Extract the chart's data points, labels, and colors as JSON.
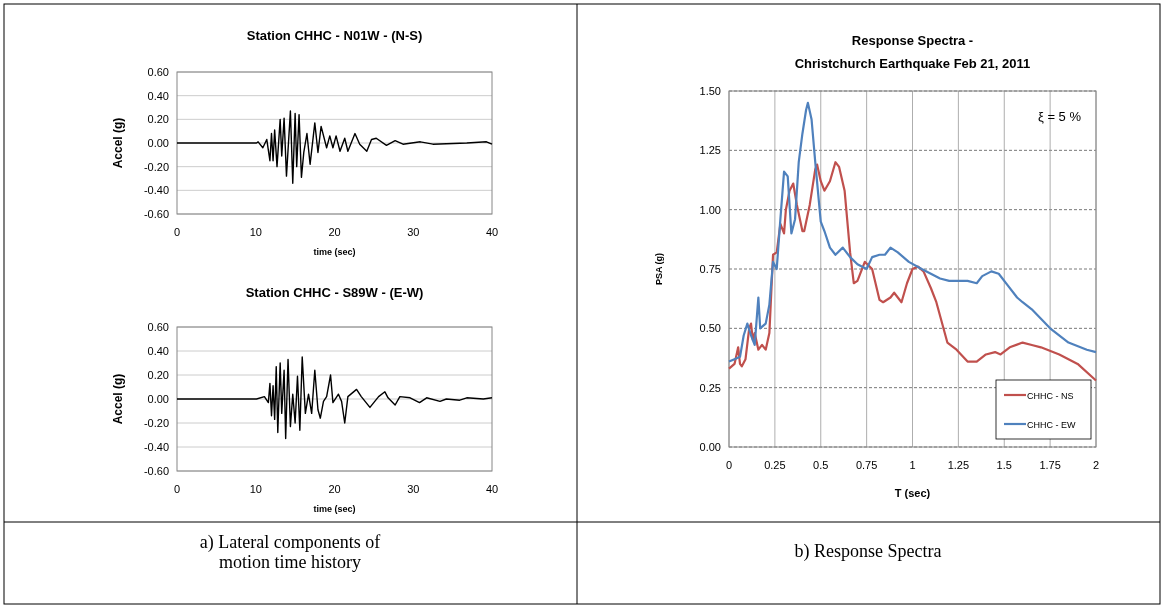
{
  "chart_data": [
    {
      "type": "line",
      "title": "Station CHHC - N01W - (N-S)",
      "xlabel": "time (sec)",
      "ylabel": "Accel (g)",
      "xlim": [
        0,
        40
      ],
      "xticks": [
        0,
        10,
        20,
        30,
        40
      ],
      "ylim": [
        -0.6,
        0.6
      ],
      "yticks": [
        {
          "value": -0.6,
          "label": "-0.60"
        },
        {
          "value": -0.4,
          "label": "-0.40"
        },
        {
          "value": -0.2,
          "label": "-0.20"
        },
        {
          "value": 0,
          "label": "0.00"
        },
        {
          "value": 0.2,
          "label": "0.20"
        },
        {
          "value": 0.4,
          "label": "0.40"
        },
        {
          "value": 0.6,
          "label": "0.60"
        }
      ],
      "grid": "y",
      "series": [
        {
          "color": "#000000",
          "x": [
            0,
            10.1,
            10.3,
            10.9,
            11.4,
            11.6,
            11.8,
            12.0,
            12.2,
            12.4,
            12.7,
            13.1,
            13.3,
            13.6,
            13.9,
            14.4,
            14.7,
            15.0,
            15.2,
            15.5,
            15.8,
            16.1,
            16.5,
            16.9,
            17.5,
            17.9,
            18.3,
            19.0,
            19.4,
            19.8,
            20.2,
            20.7,
            21.3,
            21.7,
            22.6,
            23.2,
            24.1,
            24.7,
            25.3,
            26.6,
            27.7,
            28.7,
            30.9,
            32.5,
            36.8,
            39.3,
            40
          ],
          "values": [
            0,
            0,
            0.01,
            -0.04,
            0.03,
            -0.06,
            -0.15,
            0.08,
            -0.15,
            0.11,
            -0.2,
            0.2,
            -0.11,
            0.21,
            -0.28,
            0.27,
            -0.34,
            0.25,
            -0.2,
            0.24,
            -0.29,
            -0.08,
            0.08,
            -0.18,
            0.17,
            -0.08,
            0.14,
            -0.04,
            0.06,
            -0.04,
            0.06,
            -0.07,
            0.04,
            -0.07,
            0.08,
            -0.01,
            -0.07,
            0.03,
            0.04,
            -0.02,
            0.02,
            -0.01,
            0.01,
            -0.01,
            0,
            0.01,
            -0.01
          ]
        }
      ]
    },
    {
      "type": "line",
      "title": "Station CHHC - S89W - (E-W)",
      "xlabel": "time (sec)",
      "ylabel": "Accel (g)",
      "xlim": [
        0,
        40
      ],
      "xticks": [
        0,
        10,
        20,
        30,
        40
      ],
      "ylim": [
        -0.6,
        0.6
      ],
      "yticks": [
        {
          "value": -0.6,
          "label": "-0.60"
        },
        {
          "value": -0.4,
          "label": "-0.40"
        },
        {
          "value": -0.2,
          "label": "-0.20"
        },
        {
          "value": 0,
          "label": "0.00"
        },
        {
          "value": 0.2,
          "label": "0.20"
        },
        {
          "value": 0.4,
          "label": "0.40"
        },
        {
          "value": 0.6,
          "label": "0.60"
        }
      ],
      "grid": "y",
      "annotations": [
        "a) Lateral components of motion time history"
      ],
      "series": [
        {
          "color": "#000000",
          "x": [
            0,
            10.1,
            11.1,
            11.6,
            11.8,
            12.0,
            12.2,
            12.4,
            12.6,
            12.8,
            13.1,
            13.3,
            13.6,
            13.8,
            14.1,
            14.4,
            14.7,
            15.0,
            15.3,
            15.6,
            15.9,
            16.3,
            16.7,
            17.1,
            17.5,
            17.9,
            18.2,
            18.6,
            19.0,
            19.5,
            19.8,
            20.5,
            20.9,
            21.3,
            21.7,
            22.8,
            23.4,
            24.5,
            25.6,
            26.4,
            26.8,
            27.7,
            28.3,
            29.6,
            30.8,
            31.7,
            33.4,
            34.2,
            35.9,
            36.8,
            38.9,
            40
          ],
          "values": [
            0,
            0,
            0.02,
            -0.03,
            0.13,
            -0.14,
            0.11,
            -0.17,
            0.27,
            -0.28,
            0.3,
            -0.12,
            0.24,
            -0.33,
            0.33,
            -0.23,
            0.04,
            -0.2,
            0.19,
            -0.26,
            0.35,
            -0.12,
            0.04,
            -0.12,
            0.24,
            -0.09,
            -0.16,
            -0.02,
            0.02,
            0.2,
            -0.03,
            0.04,
            -0.02,
            -0.2,
            0.02,
            0.08,
            0.02,
            -0.07,
            0.02,
            0.06,
            0.01,
            -0.05,
            0.02,
            0.01,
            -0.03,
            0.01,
            -0.02,
            0,
            -0.01,
            0.01,
            0,
            0.01
          ]
        }
      ]
    },
    {
      "type": "line",
      "title": "Response Spectra  -\nChristchurch Earthquake Feb 21, 2011",
      "xlabel": "T (sec)",
      "ylabel": "PSA (g)",
      "xlim": [
        0,
        2
      ],
      "xticks": [
        0,
        0.25,
        {
          "value": 0.5,
          "label": "0.5"
        },
        0.75,
        1,
        1.25,
        {
          "value": 1.5,
          "label": "1.5"
        },
        1.75,
        2
      ],
      "ylim": [
        0,
        1.5
      ],
      "yticks": [
        {
          "value": 0,
          "label": "0.00"
        },
        {
          "value": 0.25,
          "label": "0.25"
        },
        {
          "value": 0.5,
          "label": "0.50"
        },
        {
          "value": 0.75,
          "label": "0.75"
        },
        {
          "value": 1,
          "label": "1.00"
        },
        {
          "value": 1.25,
          "label": "1.25"
        },
        {
          "value": 1.5,
          "label": "1.50"
        }
      ],
      "grid": true,
      "legend": "bottom right",
      "annotations": [
        "ξ = 5 %",
        "b) Response Spectra"
      ],
      "series": [
        {
          "name": "CHHC - NS",
          "color": "#c0504d",
          "x": [
            0,
            0.03,
            0.05,
            0.06,
            0.07,
            0.09,
            0.11,
            0.12,
            0.13,
            0.14,
            0.16,
            0.18,
            0.2,
            0.22,
            0.24,
            0.26,
            0.28,
            0.3,
            0.31,
            0.33,
            0.35,
            0.37,
            0.4,
            0.41,
            0.44,
            0.47,
            0.48,
            0.5,
            0.52,
            0.55,
            0.58,
            0.6,
            0.63,
            0.66,
            0.68,
            0.7,
            0.74,
            0.78,
            0.82,
            0.84,
            0.88,
            0.9,
            0.94,
            0.97,
            1.0,
            1.03,
            1.06,
            1.1,
            1.13,
            1.19,
            1.24,
            1.3,
            1.35,
            1.4,
            1.45,
            1.48,
            1.53,
            1.6,
            1.65,
            1.7,
            1.8,
            1.9,
            2.0
          ],
          "values": [
            0.33,
            0.35,
            0.42,
            0.35,
            0.34,
            0.37,
            0.5,
            0.52,
            0.45,
            0.48,
            0.41,
            0.43,
            0.41,
            0.48,
            0.81,
            0.82,
            0.94,
            0.9,
            1.0,
            1.08,
            1.11,
            1.02,
            0.91,
            0.91,
            1.02,
            1.17,
            1.19,
            1.12,
            1.08,
            1.12,
            1.2,
            1.18,
            1.08,
            0.82,
            0.69,
            0.7,
            0.78,
            0.75,
            0.62,
            0.61,
            0.63,
            0.65,
            0.61,
            0.69,
            0.75,
            0.76,
            0.74,
            0.67,
            0.61,
            0.44,
            0.41,
            0.36,
            0.36,
            0.39,
            0.4,
            0.39,
            0.42,
            0.44,
            0.43,
            0.42,
            0.39,
            0.35,
            0.28
          ]
        },
        {
          "name": "CHHC - EW",
          "color": "#4f81bd",
          "x": [
            0,
            0.03,
            0.06,
            0.08,
            0.1,
            0.12,
            0.14,
            0.16,
            0.17,
            0.2,
            0.22,
            0.24,
            0.26,
            0.28,
            0.3,
            0.32,
            0.34,
            0.36,
            0.38,
            0.4,
            0.42,
            0.43,
            0.45,
            0.47,
            0.5,
            0.52,
            0.55,
            0.58,
            0.62,
            0.66,
            0.7,
            0.75,
            0.78,
            0.82,
            0.85,
            0.88,
            0.92,
            0.98,
            1.05,
            1.15,
            1.2,
            1.3,
            1.35,
            1.38,
            1.43,
            1.47,
            1.52,
            1.57,
            1.6,
            1.65,
            1.75,
            1.85,
            1.95,
            2.0
          ],
          "values": [
            0.36,
            0.37,
            0.38,
            0.47,
            0.52,
            0.47,
            0.43,
            0.63,
            0.5,
            0.52,
            0.6,
            0.78,
            0.75,
            0.96,
            1.16,
            1.14,
            0.9,
            0.96,
            1.2,
            1.32,
            1.42,
            1.45,
            1.38,
            1.2,
            0.95,
            0.91,
            0.84,
            0.81,
            0.84,
            0.8,
            0.77,
            0.75,
            0.8,
            0.81,
            0.81,
            0.84,
            0.82,
            0.78,
            0.75,
            0.71,
            0.7,
            0.7,
            0.69,
            0.72,
            0.74,
            0.73,
            0.68,
            0.63,
            0.61,
            0.58,
            0.5,
            0.44,
            0.41,
            0.4
          ]
        }
      ]
    }
  ]
}
